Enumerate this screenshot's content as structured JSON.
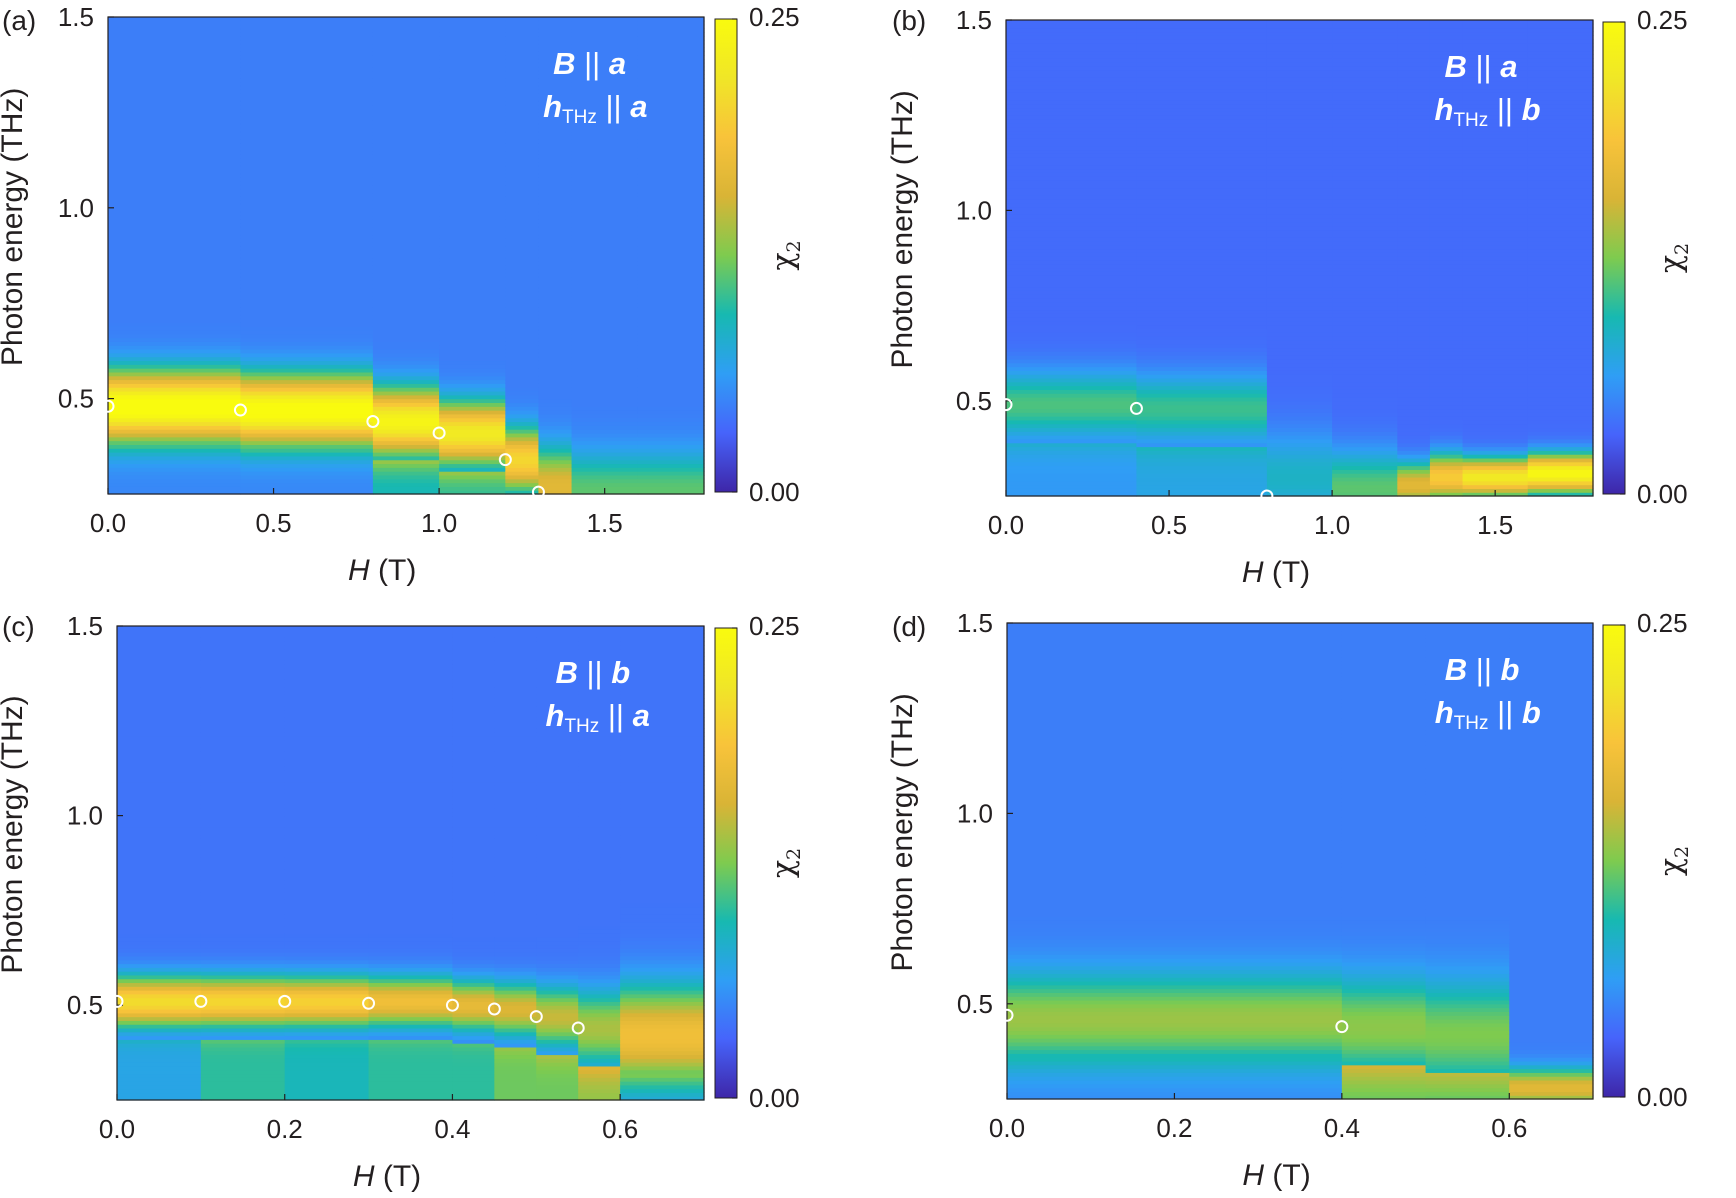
{
  "colorbar": {
    "min": 0.0,
    "max": 0.25,
    "min_label": "0.00",
    "max_label": "0.25",
    "label": "χ",
    "label_sub": "2",
    "colormap": [
      "#3e26a8",
      "#4664fb",
      "#2f9ef5",
      "#17b9b1",
      "#7ecb4f",
      "#d9b436",
      "#f8c33a",
      "#f0e627",
      "#f9fb0e"
    ]
  },
  "chart_data": [
    {
      "panel": "(a)",
      "type": "heatmap",
      "title": "",
      "xlabel": "H (T)",
      "ylabel": "Photon energy (THz)",
      "xlim": [
        0.0,
        1.8
      ],
      "ylim": [
        0.25,
        1.5
      ],
      "xticks": [
        "0.0",
        "0.5",
        "1.0",
        "1.5"
      ],
      "xtick_values": [
        0.0,
        0.5,
        1.0,
        1.5
      ],
      "yticks": [
        "0.5",
        "1.0",
        "1.5"
      ],
      "ytick_values": [
        0.5,
        1.0,
        1.5
      ],
      "annotation": {
        "line1_var": "B",
        "line1_sep": " || ",
        "line1_axis": "a",
        "line2_var": "h",
        "line2_sub": "THz",
        "line2_sep": " || ",
        "line2_axis": "a"
      },
      "background": 0.045,
      "columns": [
        {
          "x0": 0.0,
          "x1": 0.4,
          "peak": 0.48,
          "width": 0.09,
          "amp": 0.215,
          "floor": 0.05
        },
        {
          "x0": 0.4,
          "x1": 0.8,
          "peak": 0.47,
          "width": 0.09,
          "amp": 0.21,
          "floor": 0.05
        },
        {
          "x0": 0.8,
          "x1": 1.0,
          "peak": 0.44,
          "width": 0.085,
          "amp": 0.195,
          "floor": 0.09
        },
        {
          "x0": 1.0,
          "x1": 1.2,
          "peak": 0.41,
          "width": 0.08,
          "amp": 0.18,
          "floor": 0.1
        },
        {
          "x0": 1.2,
          "x1": 1.3,
          "peak": 0.34,
          "width": 0.08,
          "amp": 0.16,
          "floor": 0.11
        },
        {
          "x0": 1.3,
          "x1": 1.4,
          "peak": 0.27,
          "width": 0.1,
          "amp": 0.12,
          "floor": 0.11
        },
        {
          "x0": 1.4,
          "x1": 1.6,
          "peak": 0.26,
          "width": 0.1,
          "amp": 0.07,
          "floor": 0.1
        },
        {
          "x0": 1.6,
          "x1": 1.8,
          "peak": 0.26,
          "width": 0.1,
          "amp": 0.07,
          "floor": 0.1
        }
      ],
      "points": [
        [
          0.0,
          0.48
        ],
        [
          0.4,
          0.47
        ],
        [
          0.8,
          0.44
        ],
        [
          1.0,
          0.41
        ],
        [
          1.2,
          0.34
        ],
        [
          1.3,
          0.255
        ]
      ]
    },
    {
      "panel": "(b)",
      "type": "heatmap",
      "title": "",
      "xlabel": "H (T)",
      "ylabel": "Photon energy (THz)",
      "xlim": [
        0.0,
        1.8
      ],
      "ylim": [
        0.25,
        1.5
      ],
      "xticks": [
        "0.0",
        "0.5",
        "1.0",
        "1.5"
      ],
      "xtick_values": [
        0.0,
        0.5,
        1.0,
        1.5
      ],
      "yticks": [
        "0.5",
        "1.0",
        "1.5"
      ],
      "ytick_values": [
        0.5,
        1.0,
        1.5
      ],
      "annotation": {
        "line1_var": "B",
        "line1_sep": " || ",
        "line1_axis": "a",
        "line2_var": "h",
        "line2_sub": "THz",
        "line2_sep": " || ",
        "line2_axis": "b"
      },
      "background": 0.035,
      "columns": [
        {
          "x0": 0.0,
          "x1": 0.4,
          "peak": 0.49,
          "width": 0.09,
          "amp": 0.075,
          "floor": 0.06
        },
        {
          "x0": 0.4,
          "x1": 0.8,
          "peak": 0.48,
          "width": 0.09,
          "amp": 0.07,
          "floor": 0.07
        },
        {
          "x0": 0.8,
          "x1": 1.0,
          "peak": 0.3,
          "width": 0.12,
          "amp": 0.05,
          "floor": 0.075
        },
        {
          "x0": 1.0,
          "x1": 1.2,
          "peak": 0.27,
          "width": 0.1,
          "amp": 0.08,
          "floor": 0.075
        },
        {
          "x0": 1.2,
          "x1": 1.3,
          "peak": 0.28,
          "width": 0.06,
          "amp": 0.13,
          "floor": 0.08
        },
        {
          "x0": 1.3,
          "x1": 1.4,
          "peak": 0.3,
          "width": 0.06,
          "amp": 0.16,
          "floor": 0.08
        },
        {
          "x0": 1.4,
          "x1": 1.6,
          "peak": 0.3,
          "width": 0.05,
          "amp": 0.19,
          "floor": 0.08
        },
        {
          "x0": 1.6,
          "x1": 1.8,
          "peak": 0.31,
          "width": 0.05,
          "amp": 0.21,
          "floor": 0.08
        }
      ],
      "points": [
        [
          0.0,
          0.49
        ],
        [
          0.4,
          0.48
        ],
        [
          0.8,
          0.25
        ]
      ]
    },
    {
      "panel": "(c)",
      "type": "heatmap",
      "title": "",
      "xlabel": "H (T)",
      "ylabel": "Photon energy (THz)",
      "xlim": [
        0.0,
        0.7
      ],
      "ylim": [
        0.25,
        1.5
      ],
      "xticks": [
        "0.0",
        "0.2",
        "0.4",
        "0.6"
      ],
      "xtick_values": [
        0.0,
        0.2,
        0.4,
        0.6
      ],
      "yticks": [
        "0.5",
        "1.0",
        "1.5"
      ],
      "ytick_values": [
        0.5,
        1.0,
        1.5
      ],
      "annotation": {
        "line1_var": "B",
        "line1_sep": " || ",
        "line1_axis": "b",
        "line2_var": "h",
        "line2_sub": "THz",
        "line2_sep": " || ",
        "line2_axis": "a"
      },
      "background": 0.04,
      "columns": [
        {
          "x0": 0.0,
          "x1": 0.1,
          "peak": 0.51,
          "width": 0.065,
          "amp": 0.17,
          "floor": 0.07
        },
        {
          "x0": 0.1,
          "x1": 0.2,
          "peak": 0.51,
          "width": 0.065,
          "amp": 0.165,
          "floor": 0.1
        },
        {
          "x0": 0.2,
          "x1": 0.3,
          "peak": 0.51,
          "width": 0.065,
          "amp": 0.16,
          "floor": 0.09
        },
        {
          "x0": 0.3,
          "x1": 0.4,
          "peak": 0.51,
          "width": 0.065,
          "amp": 0.14,
          "floor": 0.1
        },
        {
          "x0": 0.4,
          "x1": 0.45,
          "peak": 0.5,
          "width": 0.065,
          "amp": 0.13,
          "floor": 0.1
        },
        {
          "x0": 0.45,
          "x1": 0.5,
          "peak": 0.49,
          "width": 0.07,
          "amp": 0.12,
          "floor": 0.12
        },
        {
          "x0": 0.5,
          "x1": 0.55,
          "peak": 0.47,
          "width": 0.08,
          "amp": 0.11,
          "floor": 0.12
        },
        {
          "x0": 0.55,
          "x1": 0.6,
          "peak": 0.44,
          "width": 0.1,
          "amp": 0.1,
          "floor": 0.13
        },
        {
          "x0": 0.6,
          "x1": 0.7,
          "peak": 0.42,
          "width": 0.13,
          "amp": 0.14,
          "floor": 0.05
        }
      ],
      "points": [
        [
          0.0,
          0.51
        ],
        [
          0.1,
          0.51
        ],
        [
          0.2,
          0.51
        ],
        [
          0.3,
          0.505
        ],
        [
          0.4,
          0.5
        ],
        [
          0.45,
          0.49
        ],
        [
          0.5,
          0.47
        ],
        [
          0.55,
          0.44
        ]
      ]
    },
    {
      "panel": "(d)",
      "type": "heatmap",
      "title": "",
      "xlabel": "H (T)",
      "ylabel": "Photon energy (THz)",
      "xlim": [
        0.0,
        0.7
      ],
      "ylim": [
        0.25,
        1.5
      ],
      "xticks": [
        "0.0",
        "0.2",
        "0.4",
        "0.6"
      ],
      "xtick_values": [
        0.0,
        0.2,
        0.4,
        0.6
      ],
      "yticks": [
        "0.5",
        "1.0",
        "1.5"
      ],
      "ytick_values": [
        0.5,
        1.0,
        1.5
      ],
      "annotation": {
        "line1_var": "B",
        "line1_sep": " || ",
        "line1_axis": "b",
        "line2_var": "h",
        "line2_sub": "THz",
        "line2_sep": " || ",
        "line2_axis": "b"
      },
      "background": 0.045,
      "columns": [
        {
          "x0": 0.0,
          "x1": 0.4,
          "peak": 0.46,
          "width": 0.12,
          "amp": 0.09,
          "floor": 0.05
        },
        {
          "x0": 0.4,
          "x1": 0.5,
          "peak": 0.44,
          "width": 0.13,
          "amp": 0.085,
          "floor": 0.11
        },
        {
          "x0": 0.5,
          "x1": 0.6,
          "peak": 0.42,
          "width": 0.14,
          "amp": 0.08,
          "floor": 0.1
        },
        {
          "x0": 0.6,
          "x1": 0.7,
          "peak": 0.28,
          "width": 0.05,
          "amp": 0.12,
          "floor": 0.07
        }
      ],
      "points": [
        [
          0.0,
          0.47
        ],
        [
          0.4,
          0.44
        ]
      ]
    }
  ]
}
